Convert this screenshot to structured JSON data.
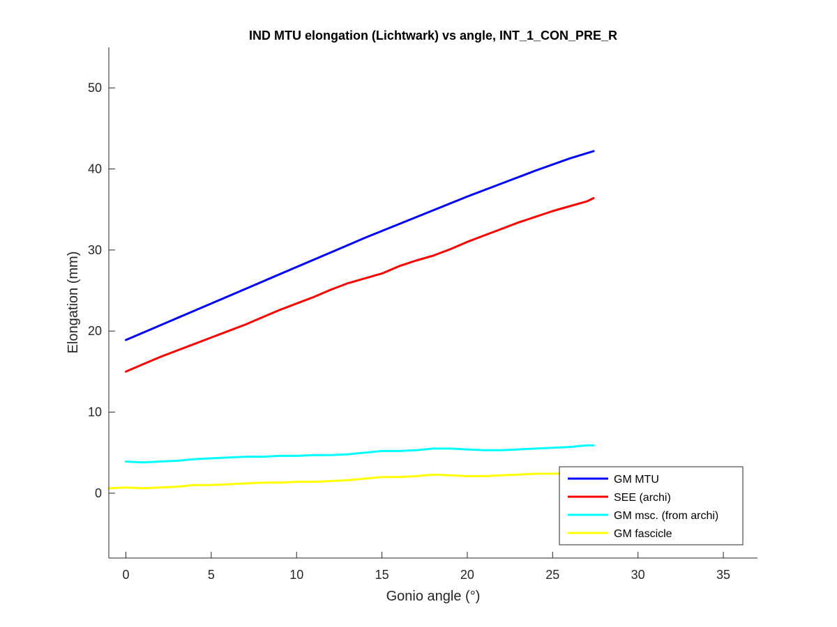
{
  "chart_data": {
    "type": "line",
    "title": "IND MTU elongation (Lichtwark) vs angle, INT_1_CON_PRE_R",
    "xlabel": "Gonio angle (°)",
    "ylabel": "Elongation (mm)",
    "xlim": [
      -1,
      37
    ],
    "ylim": [
      -8,
      55
    ],
    "xticks": [
      0,
      5,
      10,
      15,
      20,
      25,
      30,
      35
    ],
    "yticks": [
      0,
      10,
      20,
      30,
      40,
      50
    ],
    "grid": false,
    "legend_position": "bottom-right",
    "series": [
      {
        "name": "GM MTU",
        "color": "#0000ff",
        "x": [
          0,
          2,
          4,
          6,
          8,
          10,
          12,
          14,
          16,
          18,
          20,
          22,
          24,
          26,
          27.4
        ],
        "y": [
          18.9,
          20.7,
          22.5,
          24.3,
          26.1,
          27.9,
          29.7,
          31.5,
          33.2,
          34.9,
          36.6,
          38.2,
          39.8,
          41.3,
          42.2
        ]
      },
      {
        "name": "SEE (archi)",
        "color": "#ff0000",
        "x": [
          0,
          1,
          2,
          3,
          4,
          5,
          6,
          7,
          8,
          9,
          10,
          11,
          12,
          13,
          14,
          15,
          16,
          17,
          18,
          19,
          20,
          21,
          22,
          23,
          24,
          25,
          26,
          27,
          27.4
        ],
        "y": [
          15.0,
          15.9,
          16.8,
          17.6,
          18.4,
          19.2,
          20.0,
          20.8,
          21.7,
          22.6,
          23.4,
          24.2,
          25.1,
          25.9,
          26.5,
          27.1,
          28.0,
          28.7,
          29.3,
          30.1,
          31.0,
          31.8,
          32.6,
          33.4,
          34.1,
          34.8,
          35.4,
          36.0,
          36.4
        ]
      },
      {
        "name": "GM msc. (from archi)",
        "color": "#00ffff",
        "x": [
          0,
          1,
          2,
          3,
          4,
          5,
          6,
          7,
          8,
          9,
          10,
          11,
          12,
          13,
          14,
          15,
          16,
          17,
          18,
          19,
          20,
          21,
          22,
          23,
          24,
          25,
          26,
          27,
          27.4
        ],
        "y": [
          3.9,
          3.8,
          3.9,
          4.0,
          4.2,
          4.3,
          4.4,
          4.5,
          4.5,
          4.6,
          4.6,
          4.7,
          4.7,
          4.8,
          5.0,
          5.2,
          5.2,
          5.3,
          5.5,
          5.5,
          5.4,
          5.3,
          5.3,
          5.4,
          5.5,
          5.6,
          5.7,
          5.9,
          5.9
        ]
      },
      {
        "name": "GM fascicle",
        "color": "#ffff00",
        "x": [
          -1,
          0,
          1,
          2,
          3,
          4,
          5,
          6,
          7,
          8,
          9,
          10,
          11,
          12,
          13,
          14,
          15,
          16,
          17,
          18,
          19,
          20,
          21,
          22,
          23,
          24,
          25,
          26,
          27,
          27.4
        ],
        "y": [
          0.6,
          0.7,
          0.6,
          0.7,
          0.8,
          1.0,
          1.0,
          1.1,
          1.2,
          1.3,
          1.3,
          1.4,
          1.4,
          1.5,
          1.6,
          1.8,
          2.0,
          2.0,
          2.1,
          2.3,
          2.2,
          2.1,
          2.1,
          2.2,
          2.3,
          2.4,
          2.4,
          2.5,
          2.6,
          2.6
        ]
      }
    ]
  }
}
